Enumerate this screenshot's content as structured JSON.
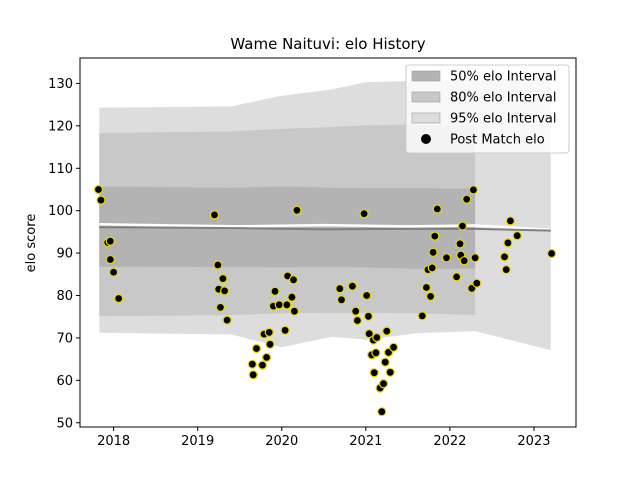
{
  "chart_data": {
    "type": "scatter",
    "title": "Wame Naituvi: elo History",
    "xlabel": "",
    "ylabel": "elo score",
    "xlim": [
      2017.6,
      2023.5
    ],
    "ylim": [
      49,
      136
    ],
    "x_ticks": [
      2018,
      2019,
      2020,
      2021,
      2022,
      2023
    ],
    "x_tick_labels": [
      "2018",
      "2019",
      "2020",
      "2021",
      "2022",
      "2023"
    ],
    "y_ticks": [
      50,
      60,
      70,
      80,
      90,
      100,
      110,
      120,
      130
    ],
    "y_tick_labels": [
      "50",
      "60",
      "70",
      "80",
      "90",
      "100",
      "110",
      "120",
      "130"
    ],
    "grid": false,
    "legend_position": "upper right",
    "legend": [
      {
        "label": "50% elo Interval",
        "color": "#b3b3b3",
        "kind": "patch"
      },
      {
        "label": "80% elo Interval",
        "color": "#c8c8c8",
        "kind": "patch"
      },
      {
        "label": "95% elo Interval",
        "color": "#dddddd",
        "kind": "patch"
      },
      {
        "label": "Post Match elo",
        "color": "#000000",
        "kind": "marker"
      }
    ],
    "mean_elo": {
      "color": "#ffffff",
      "points": [
        [
          2017.83,
          96.8
        ],
        [
          2019.5,
          96.3
        ],
        [
          2020.5,
          96.6
        ],
        [
          2021.5,
          96.3
        ],
        [
          2022.3,
          96.5
        ],
        [
          2023.2,
          95.5
        ]
      ]
    },
    "median_elo": {
      "color": "#7f7f7f",
      "points": [
        [
          2017.83,
          96.1
        ],
        [
          2019.5,
          95.9
        ],
        [
          2020.5,
          95.6
        ],
        [
          2021.5,
          95.7
        ],
        [
          2022.3,
          95.7
        ],
        [
          2023.2,
          95.3
        ]
      ]
    },
    "intervals": [
      {
        "name": "95% elo Interval",
        "color": "#dddddd",
        "x": [
          2017.83,
          2019.4,
          2020.0,
          2020.6,
          2021.0,
          2021.6,
          2022.3,
          2023.2
        ],
        "upper": [
          124.3,
          124.6,
          127.1,
          128.6,
          130.3,
          130.6,
          131.0,
          131.2
        ],
        "lower": [
          71.2,
          70.8,
          67.8,
          70.3,
          69.6,
          71.1,
          71.6,
          67.1
        ]
      },
      {
        "name": "80% elo Interval",
        "color": "#c8c8c8",
        "x": [
          2017.83,
          2019.4,
          2020.0,
          2020.6,
          2021.0,
          2021.6,
          2022.3
        ],
        "upper": [
          118.3,
          118.7,
          119.3,
          119.7,
          120.1,
          120.3,
          120.0
        ],
        "lower": [
          75.1,
          75.4,
          75.8,
          75.9,
          75.9,
          75.8,
          75.4
        ]
      },
      {
        "name": "50% elo Interval",
        "color": "#b3b3b3",
        "x": [
          2017.83,
          2019.4,
          2020.0,
          2020.6,
          2021.0,
          2021.6,
          2022.3
        ],
        "upper": [
          105.7,
          105.4,
          105.7,
          105.4,
          105.3,
          105.3,
          105.2
        ],
        "lower": [
          86.8,
          86.7,
          86.6,
          86.7,
          86.6,
          86.3,
          86.3
        ]
      }
    ],
    "points": [
      {
        "x": 2017.82,
        "y": 105.0
      },
      {
        "x": 2017.85,
        "y": 102.5
      },
      {
        "x": 2017.93,
        "y": 92.5
      },
      {
        "x": 2017.96,
        "y": 92.8
      },
      {
        "x": 2017.96,
        "y": 88.5
      },
      {
        "x": 2018.0,
        "y": 85.5
      },
      {
        "x": 2018.06,
        "y": 79.3
      },
      {
        "x": 2019.2,
        "y": 99.0
      },
      {
        "x": 2019.24,
        "y": 87.2
      },
      {
        "x": 2019.25,
        "y": 81.5
      },
      {
        "x": 2019.27,
        "y": 77.2
      },
      {
        "x": 2019.3,
        "y": 84.0
      },
      {
        "x": 2019.32,
        "y": 81.1
      },
      {
        "x": 2019.35,
        "y": 74.2
      },
      {
        "x": 2019.65,
        "y": 63.8
      },
      {
        "x": 2019.66,
        "y": 61.3
      },
      {
        "x": 2019.7,
        "y": 67.5
      },
      {
        "x": 2019.77,
        "y": 63.6
      },
      {
        "x": 2019.79,
        "y": 70.9
      },
      {
        "x": 2019.82,
        "y": 65.4
      },
      {
        "x": 2019.85,
        "y": 71.3
      },
      {
        "x": 2019.86,
        "y": 68.5
      },
      {
        "x": 2019.9,
        "y": 77.5
      },
      {
        "x": 2019.92,
        "y": 81.0
      },
      {
        "x": 2019.97,
        "y": 77.8
      },
      {
        "x": 2020.04,
        "y": 71.8
      },
      {
        "x": 2020.06,
        "y": 77.8
      },
      {
        "x": 2020.07,
        "y": 84.6
      },
      {
        "x": 2020.12,
        "y": 79.6
      },
      {
        "x": 2020.14,
        "y": 83.7
      },
      {
        "x": 2020.15,
        "y": 76.3
      },
      {
        "x": 2020.18,
        "y": 100.1
      },
      {
        "x": 2020.69,
        "y": 81.6
      },
      {
        "x": 2020.71,
        "y": 79.0
      },
      {
        "x": 2020.84,
        "y": 82.2
      },
      {
        "x": 2020.88,
        "y": 76.3
      },
      {
        "x": 2020.9,
        "y": 74.1
      },
      {
        "x": 2020.98,
        "y": 99.3
      },
      {
        "x": 2021.01,
        "y": 80.0
      },
      {
        "x": 2021.03,
        "y": 75.1
      },
      {
        "x": 2021.04,
        "y": 71.0
      },
      {
        "x": 2021.07,
        "y": 66.0
      },
      {
        "x": 2021.09,
        "y": 69.5
      },
      {
        "x": 2021.1,
        "y": 61.8
      },
      {
        "x": 2021.12,
        "y": 66.5
      },
      {
        "x": 2021.13,
        "y": 70.1
      },
      {
        "x": 2021.17,
        "y": 58.2
      },
      {
        "x": 2021.19,
        "y": 52.6
      },
      {
        "x": 2021.21,
        "y": 59.2
      },
      {
        "x": 2021.23,
        "y": 64.3
      },
      {
        "x": 2021.25,
        "y": 71.6
      },
      {
        "x": 2021.27,
        "y": 66.6
      },
      {
        "x": 2021.29,
        "y": 61.9
      },
      {
        "x": 2021.33,
        "y": 67.8
      },
      {
        "x": 2021.67,
        "y": 75.2
      },
      {
        "x": 2021.72,
        "y": 81.9
      },
      {
        "x": 2021.74,
        "y": 86.1
      },
      {
        "x": 2021.77,
        "y": 79.8
      },
      {
        "x": 2021.79,
        "y": 86.5
      },
      {
        "x": 2021.8,
        "y": 90.2
      },
      {
        "x": 2021.82,
        "y": 94.0
      },
      {
        "x": 2021.85,
        "y": 100.4
      },
      {
        "x": 2021.96,
        "y": 88.9
      },
      {
        "x": 2022.08,
        "y": 84.4
      },
      {
        "x": 2022.12,
        "y": 92.2
      },
      {
        "x": 2022.13,
        "y": 89.5
      },
      {
        "x": 2022.15,
        "y": 96.4
      },
      {
        "x": 2022.17,
        "y": 88.2
      },
      {
        "x": 2022.2,
        "y": 102.7
      },
      {
        "x": 2022.26,
        "y": 81.7
      },
      {
        "x": 2022.28,
        "y": 104.9
      },
      {
        "x": 2022.3,
        "y": 88.9
      },
      {
        "x": 2022.32,
        "y": 82.9
      },
      {
        "x": 2022.65,
        "y": 89.1
      },
      {
        "x": 2022.67,
        "y": 86.1
      },
      {
        "x": 2022.69,
        "y": 92.4
      },
      {
        "x": 2022.72,
        "y": 97.6
      },
      {
        "x": 2022.8,
        "y": 94.1
      },
      {
        "x": 2023.21,
        "y": 89.9
      }
    ]
  }
}
